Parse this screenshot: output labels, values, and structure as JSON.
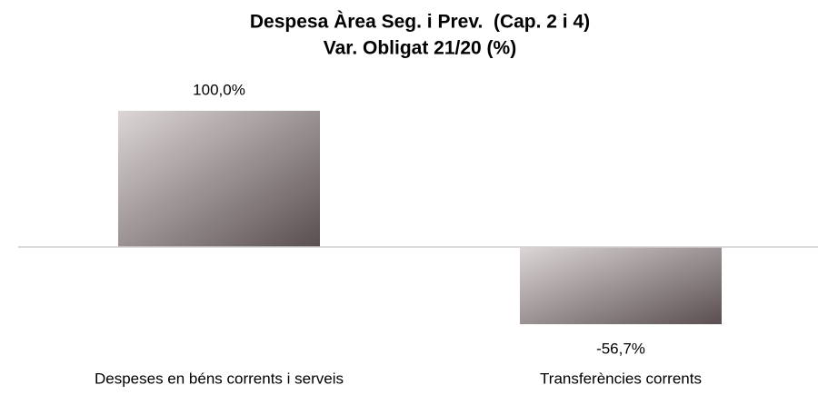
{
  "chart_data": {
    "type": "bar",
    "title": "Despesa Àrea Seg. i Prev.  (Cap. 2 i 4)",
    "subtitle": "Var. Obligat 21/20 (%)",
    "categories": [
      "Despeses en béns corrents i serveis",
      "Transferències corrents"
    ],
    "values": [
      100.0,
      -56.7
    ],
    "value_labels": [
      "100,0%",
      "-56,7%"
    ],
    "color": "#5a4f50"
  }
}
